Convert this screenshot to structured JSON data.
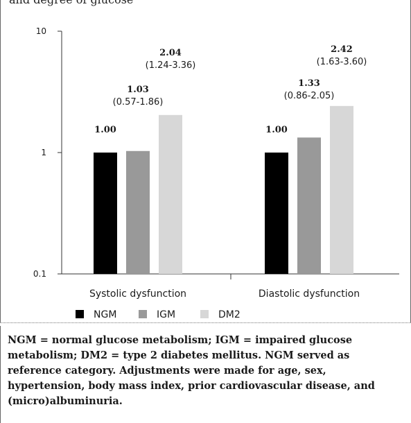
{
  "figure": {
    "caption": "and degree of glucose"
  },
  "chart_data": {
    "type": "bar",
    "yscale": "log",
    "ylim": [
      0.1,
      10
    ],
    "yticks": [
      {
        "value": 0.1,
        "label": "0.1"
      },
      {
        "value": 1,
        "label": "1"
      },
      {
        "value": 10,
        "label": "10"
      }
    ],
    "categories": [
      "Systolic dysfunction",
      "Diastolic dysfunction"
    ],
    "series": [
      {
        "name": "NGM",
        "color": "#000000",
        "values": [
          1.0,
          1.0
        ],
        "value_labels": [
          "1.00",
          "1.00"
        ],
        "ci_labels": [
          "",
          ""
        ]
      },
      {
        "name": "IGM",
        "color": "#999999",
        "values": [
          1.03,
          1.33
        ],
        "value_labels": [
          "1.03",
          "1.33"
        ],
        "ci_labels": [
          "(0.57-1.86)",
          "(0.86-2.05)"
        ]
      },
      {
        "name": "DM2",
        "color": "#d7d7d7",
        "values": [
          2.04,
          2.42
        ],
        "value_labels": [
          "2.04",
          "2.42"
        ],
        "ci_labels": [
          "(1.24-3.36)",
          "(1.63-3.60)"
        ]
      }
    ],
    "legend": {
      "position": "bottom-left",
      "entries": [
        "NGM",
        "IGM",
        "DM2"
      ]
    },
    "grid": false
  },
  "footnote": {
    "text": "NGM = normal glucose metabolism; IGM = impaired glucose metabolism; DM2 = type 2 diabetes mellitus. NGM served as reference category. Adjustments were made for age, sex, hypertension, body mass index, prior cardiovascular disease, and (micro)albuminuria."
  }
}
